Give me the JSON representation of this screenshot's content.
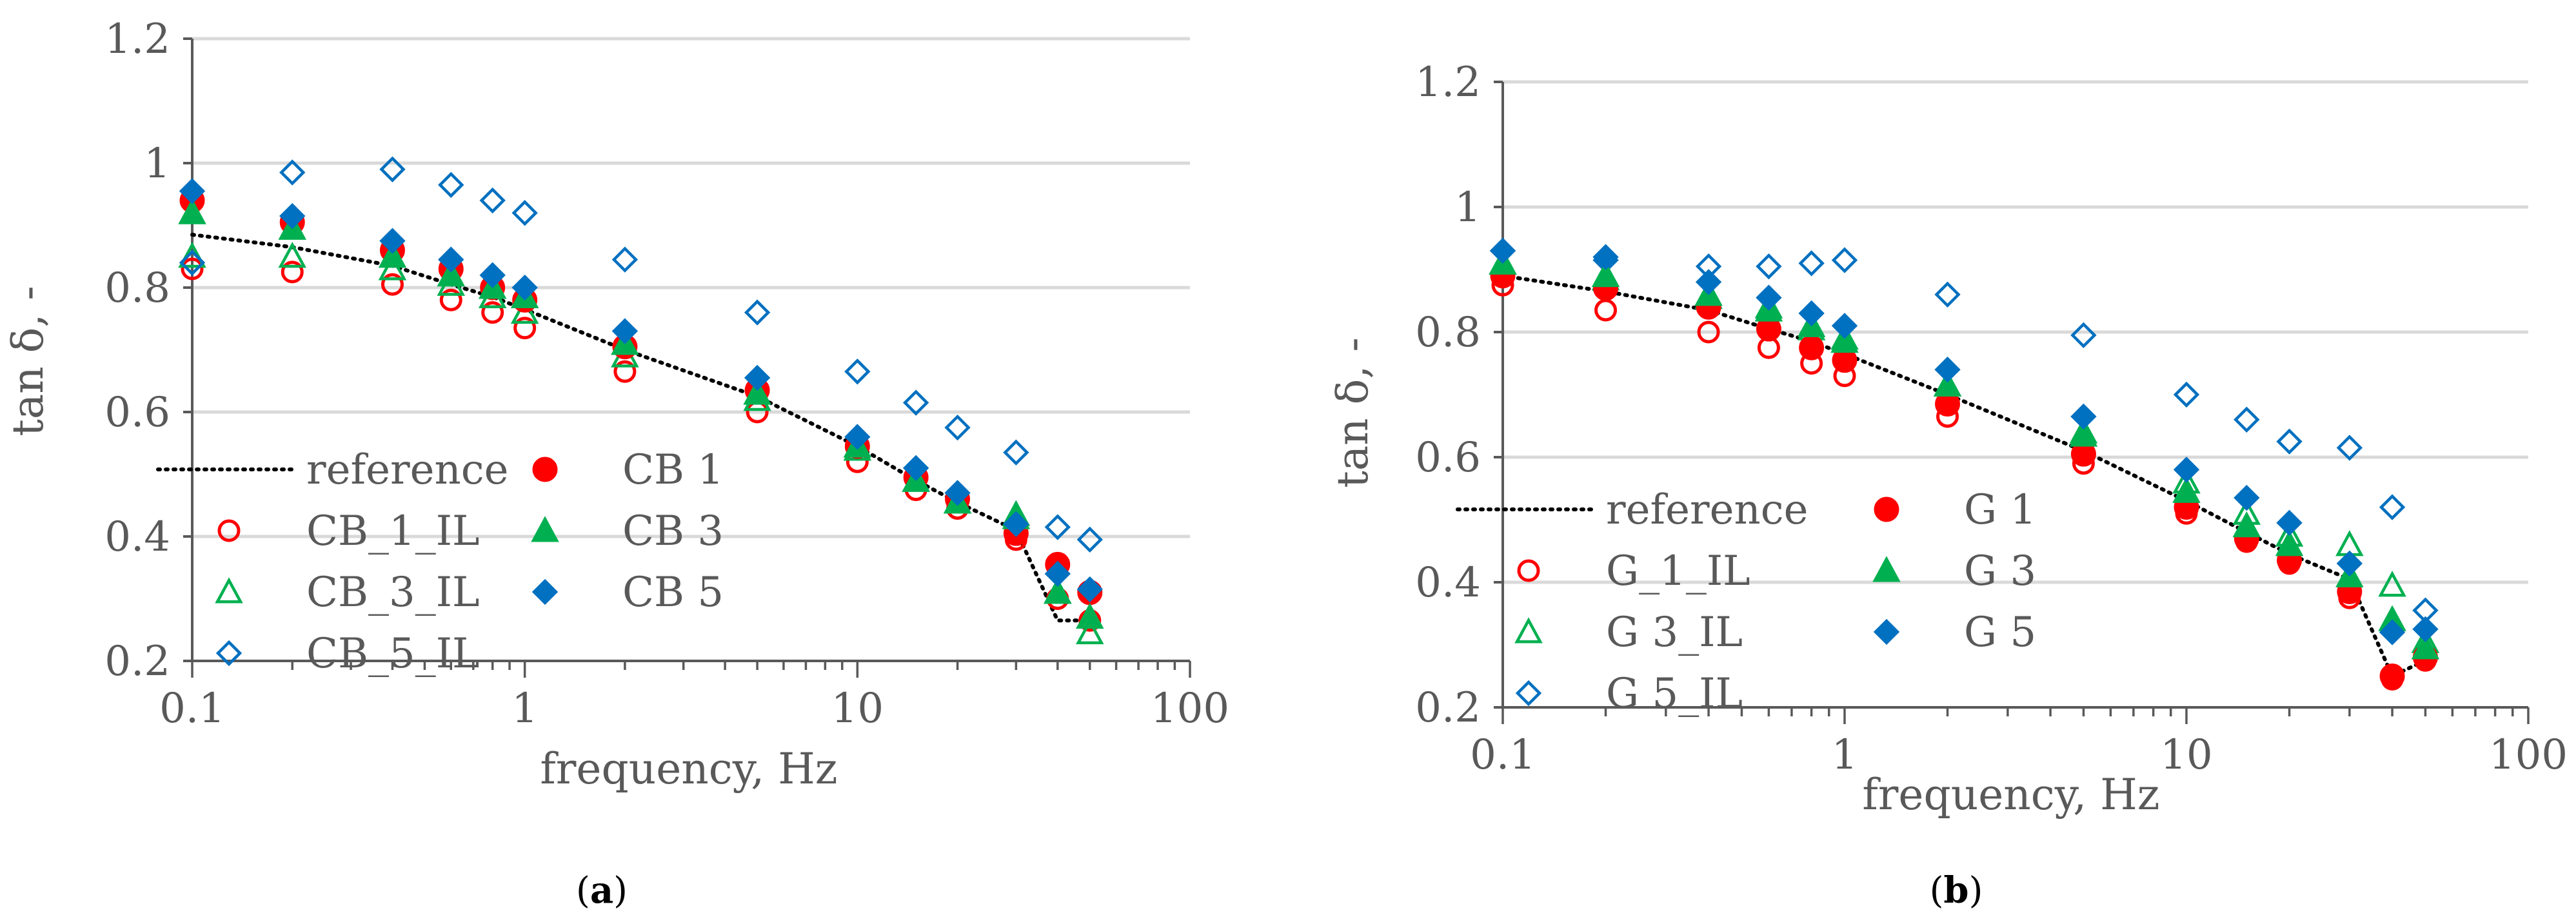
{
  "figure": {
    "caption_a_open": "(",
    "caption_a_letter": "a",
    "caption_a_close": ")",
    "caption_b_open": "(",
    "caption_b_letter": "b",
    "caption_b_close": ")"
  },
  "colors": {
    "red": "#ff0000",
    "green": "#00b050",
    "blue": "#0070c0",
    "reference": "#000000",
    "grid": "#d9d9d9",
    "axis": "#595959"
  },
  "chart_data": [
    {
      "type": "scatter",
      "panel": "a",
      "xscale": "log",
      "xlim": [
        0.1,
        100
      ],
      "ylim": [
        0.2,
        1.2
      ],
      "xticks": [
        0.1,
        1,
        10,
        100
      ],
      "xtick_labels": [
        "0.1",
        "1",
        "10",
        "100"
      ],
      "yticks": [
        0.2,
        0.4,
        0.6,
        0.8,
        1.0,
        1.2
      ],
      "ytick_labels": [
        "0.2",
        "0.4",
        "0.6",
        "0.8",
        "1",
        "1.2"
      ],
      "xlabel": "frequency, Hz",
      "ylabel": "tan δ, -",
      "grid": "horizontal",
      "legend_position": "bottom-left",
      "series": [
        {
          "name": "reference",
          "marker": "dotted-line",
          "color": "#000000",
          "x": [
            0.1,
            0.2,
            0.4,
            0.6,
            0.8,
            1,
            2,
            5,
            10,
            15,
            20,
            30,
            40,
            50
          ],
          "y": [
            0.885,
            0.865,
            0.835,
            0.805,
            0.785,
            0.765,
            0.7,
            0.625,
            0.545,
            0.49,
            0.455,
            0.41,
            0.265,
            0.265
          ]
        },
        {
          "name": "CB_1_IL",
          "marker": "open-circle",
          "color": "#ff0000",
          "x": [
            0.1,
            0.2,
            0.4,
            0.6,
            0.8,
            1,
            2,
            5,
            10,
            15,
            20,
            30,
            40,
            50
          ],
          "y": [
            0.83,
            0.825,
            0.805,
            0.78,
            0.76,
            0.735,
            0.665,
            0.6,
            0.52,
            0.475,
            0.445,
            0.395,
            0.3,
            0.265
          ]
        },
        {
          "name": "CB_3_IL",
          "marker": "open-triangle",
          "color": "#00b050",
          "x": [
            0.1,
            0.2,
            0.4,
            0.6,
            0.8,
            1,
            2,
            5,
            10,
            15,
            20,
            30,
            40,
            50
          ],
          "y": [
            0.85,
            0.85,
            0.83,
            0.805,
            0.785,
            0.76,
            0.69,
            0.62,
            0.54,
            0.49,
            0.455,
            0.435,
            0.31,
            0.245
          ]
        },
        {
          "name": "CB_5_IL",
          "marker": "open-diamond",
          "color": "#0070c0",
          "x": [
            0.1,
            0.2,
            0.4,
            0.6,
            0.8,
            1,
            2,
            5,
            10,
            15,
            20,
            30,
            40,
            50
          ],
          "y": [
            0.84,
            0.985,
            0.99,
            0.965,
            0.94,
            0.92,
            0.845,
            0.76,
            0.665,
            0.615,
            0.575,
            0.535,
            0.415,
            0.395
          ]
        },
        {
          "name": "CB 1",
          "marker": "filled-circle",
          "color": "#ff0000",
          "x": [
            0.1,
            0.2,
            0.4,
            0.6,
            0.8,
            1,
            2,
            5,
            10,
            15,
            20,
            30,
            40,
            50
          ],
          "y": [
            0.94,
            0.905,
            0.86,
            0.83,
            0.8,
            0.78,
            0.705,
            0.635,
            0.545,
            0.495,
            0.46,
            0.405,
            0.355,
            0.31
          ]
        },
        {
          "name": "CB 3",
          "marker": "filled-triangle",
          "color": "#00b050",
          "x": [
            0.1,
            0.2,
            0.4,
            0.6,
            0.8,
            1,
            2,
            5,
            10,
            15,
            20,
            30,
            40,
            50
          ],
          "y": [
            0.92,
            0.895,
            0.85,
            0.82,
            0.8,
            0.785,
            0.71,
            0.63,
            0.545,
            0.49,
            0.455,
            0.43,
            0.31,
            0.27
          ]
        },
        {
          "name": "CB 5",
          "marker": "filled-diamond",
          "color": "#0070c0",
          "x": [
            0.1,
            0.2,
            0.4,
            0.6,
            0.8,
            1,
            2,
            5,
            10,
            15,
            20,
            30,
            40,
            50
          ],
          "y": [
            0.955,
            0.915,
            0.875,
            0.845,
            0.82,
            0.8,
            0.73,
            0.655,
            0.56,
            0.51,
            0.47,
            0.42,
            0.34,
            0.315
          ]
        }
      ]
    },
    {
      "type": "scatter",
      "panel": "b",
      "xscale": "log",
      "xlim": [
        0.1,
        100
      ],
      "ylim": [
        0.2,
        1.2
      ],
      "xticks": [
        0.1,
        1,
        10,
        100
      ],
      "xtick_labels": [
        "0.1",
        "1",
        "10",
        "100"
      ],
      "yticks": [
        0.2,
        0.4,
        0.6,
        0.8,
        1.0,
        1.2
      ],
      "ytick_labels": [
        "0.2",
        "0.4",
        "0.6",
        "0.8",
        "1",
        "1.2"
      ],
      "xlabel": "frequency, Hz",
      "ylabel": "tan δ, -",
      "grid": "horizontal",
      "legend_position": "bottom-left",
      "series": [
        {
          "name": "reference",
          "marker": "dotted-line",
          "color": "#000000",
          "x": [
            0.1,
            0.2,
            0.4,
            0.6,
            0.8,
            1,
            2,
            5,
            10,
            15,
            20,
            30,
            40,
            50
          ],
          "y": [
            0.89,
            0.865,
            0.835,
            0.805,
            0.785,
            0.765,
            0.7,
            0.61,
            0.53,
            0.48,
            0.445,
            0.405,
            0.25,
            0.275
          ]
        },
        {
          "name": "G_1_IL",
          "marker": "open-circle",
          "color": "#ff0000",
          "x": [
            0.1,
            0.2,
            0.4,
            0.6,
            0.8,
            1,
            2,
            5,
            10,
            15,
            20,
            30,
            40,
            50
          ],
          "y": [
            0.875,
            0.835,
            0.8,
            0.775,
            0.75,
            0.73,
            0.665,
            0.59,
            0.51,
            0.465,
            0.43,
            0.375,
            0.245,
            0.275
          ]
        },
        {
          "name": "G 3_IL",
          "marker": "open-triangle",
          "color": "#00b050",
          "x": [
            0.1,
            0.2,
            0.4,
            0.6,
            0.8,
            1,
            2,
            5,
            10,
            15,
            20,
            30,
            40,
            50
          ],
          "y": [
            0.91,
            0.885,
            0.855,
            0.84,
            0.805,
            0.79,
            0.715,
            0.64,
            0.56,
            0.51,
            0.475,
            0.46,
            0.395,
            0.305
          ]
        },
        {
          "name": "G 5_IL",
          "marker": "open-diamond",
          "color": "#0070c0",
          "x": [
            0.1,
            0.2,
            0.4,
            0.6,
            0.8,
            1,
            2,
            5,
            10,
            15,
            20,
            30,
            40,
            50
          ],
          "y": [
            0.93,
            0.915,
            0.905,
            0.905,
            0.91,
            0.915,
            0.86,
            0.795,
            0.7,
            0.66,
            0.625,
            0.615,
            0.52,
            0.355
          ]
        },
        {
          "name": "G 1",
          "marker": "filled-circle",
          "color": "#ff0000",
          "x": [
            0.1,
            0.2,
            0.4,
            0.6,
            0.8,
            1,
            2,
            5,
            10,
            15,
            20,
            30,
            40,
            50
          ],
          "y": [
            0.89,
            0.87,
            0.84,
            0.805,
            0.775,
            0.755,
            0.685,
            0.605,
            0.52,
            0.47,
            0.435,
            0.385,
            0.25,
            0.28
          ]
        },
        {
          "name": "G 3",
          "marker": "filled-triangle",
          "color": "#00b050",
          "x": [
            0.1,
            0.2,
            0.4,
            0.6,
            0.8,
            1,
            2,
            5,
            10,
            15,
            20,
            30,
            40,
            50
          ],
          "y": [
            0.91,
            0.89,
            0.86,
            0.835,
            0.81,
            0.785,
            0.715,
            0.635,
            0.545,
            0.49,
            0.46,
            0.41,
            0.34,
            0.295
          ]
        },
        {
          "name": "G 5",
          "marker": "filled-diamond",
          "color": "#0070c0",
          "x": [
            0.1,
            0.2,
            0.4,
            0.6,
            0.8,
            1,
            2,
            5,
            10,
            15,
            20,
            30,
            40,
            50
          ],
          "y": [
            0.93,
            0.92,
            0.88,
            0.855,
            0.83,
            0.81,
            0.74,
            0.665,
            0.58,
            0.535,
            0.495,
            0.43,
            0.32,
            0.325
          ]
        }
      ]
    }
  ]
}
